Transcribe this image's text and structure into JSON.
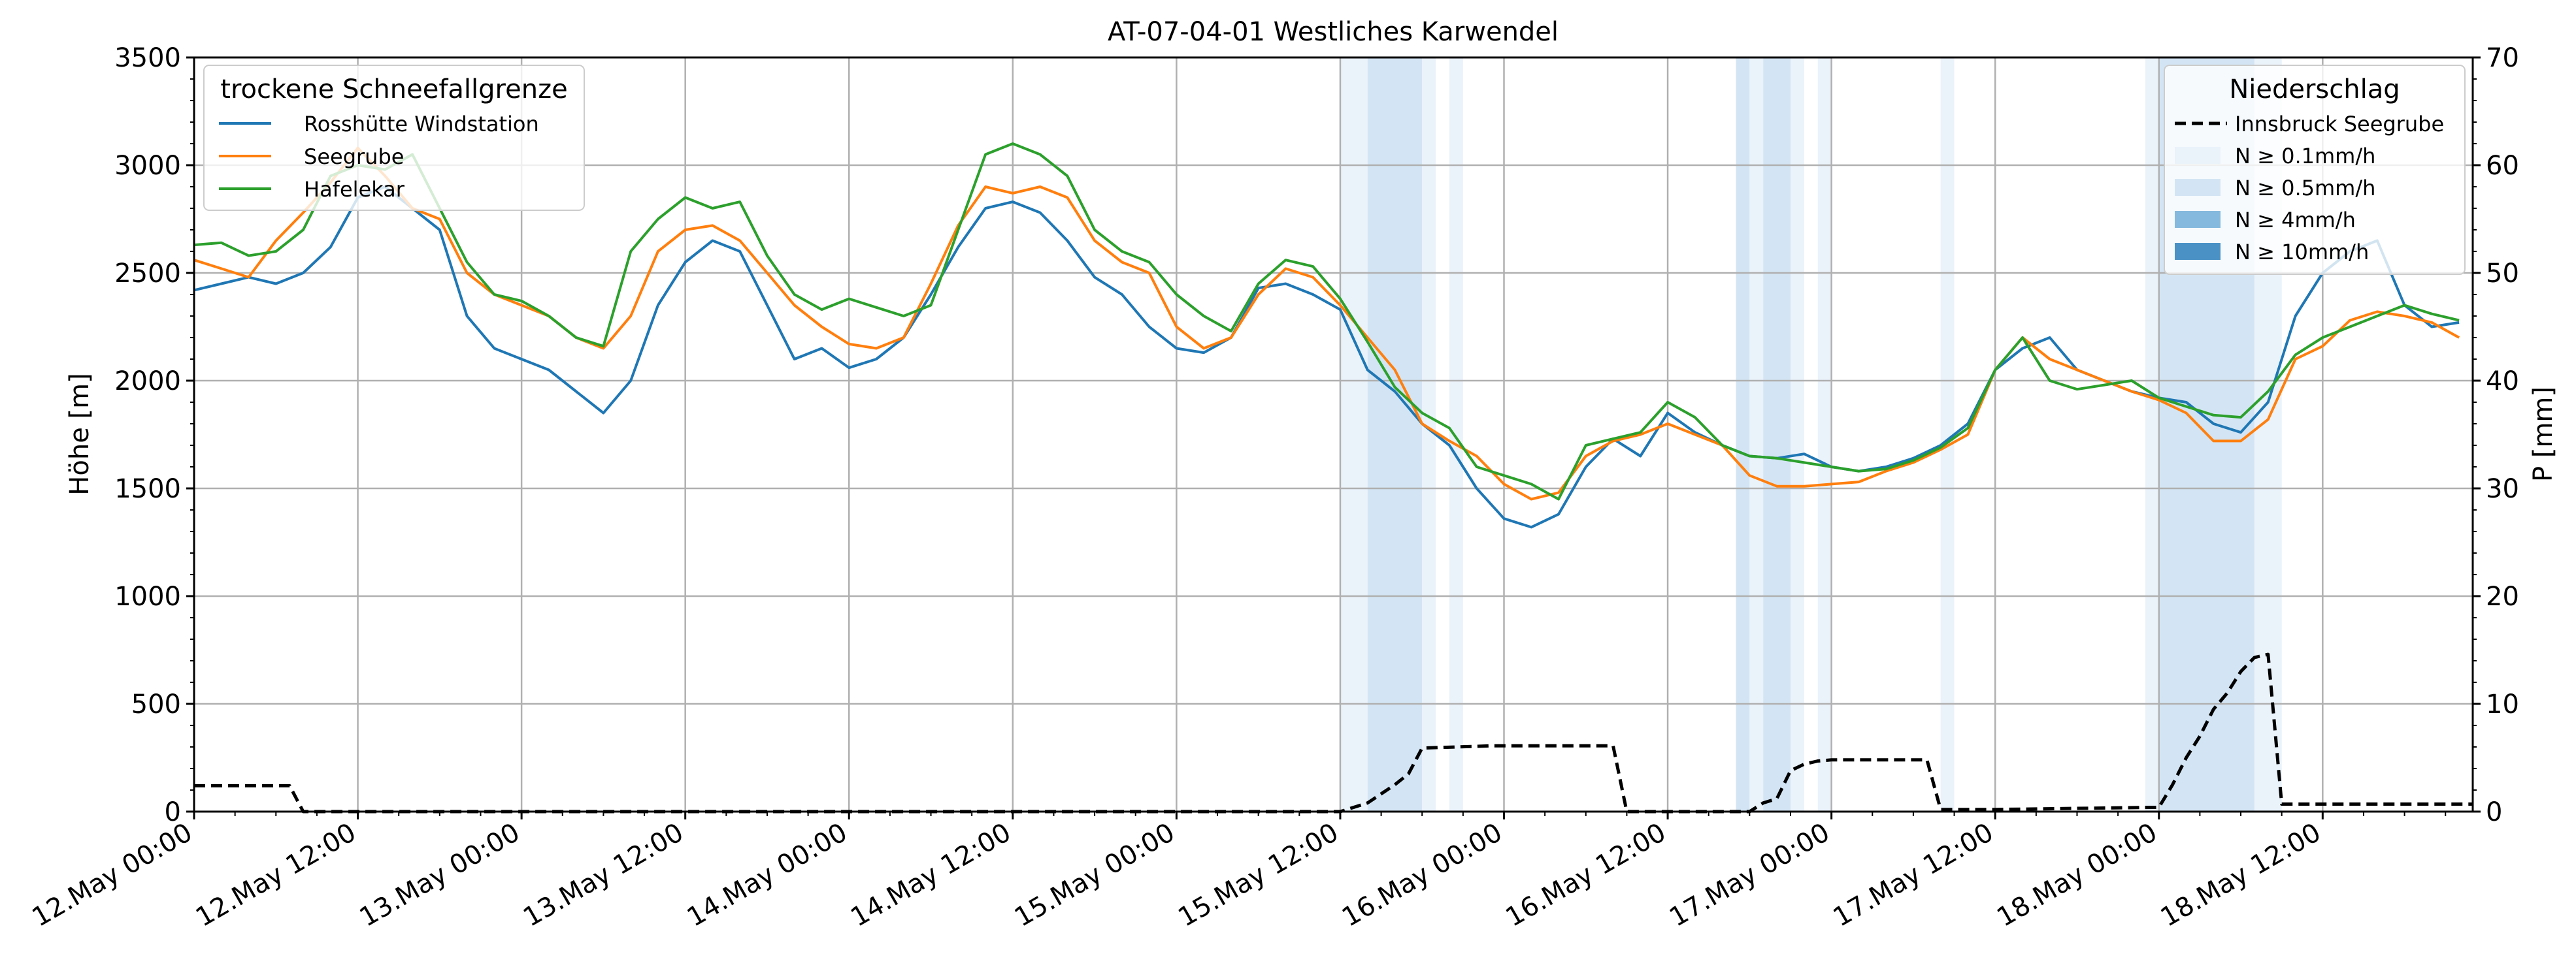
{
  "chart_data": {
    "type": "line",
    "title": "AT-07-04-01 Westliches Karwendel",
    "ylabel_left": "Höhe [m]",
    "ylabel_right": "P [mm]",
    "ylim_left": [
      0,
      3500
    ],
    "ylim_right": [
      0,
      70
    ],
    "yticks_left": [
      "0",
      "500",
      "1000",
      "1500",
      "2000",
      "2500",
      "3000",
      "3500"
    ],
    "yticks_right": [
      "0",
      "10",
      "20",
      "30",
      "40",
      "50",
      "60",
      "70"
    ],
    "x_unit": "hours since 12.May 00:00",
    "xlim": [
      0,
      167
    ],
    "xticks": [
      {
        "x": 0,
        "label": "12.May 00:00"
      },
      {
        "x": 12,
        "label": "12.May 12:00"
      },
      {
        "x": 24,
        "label": "13.May 00:00"
      },
      {
        "x": 36,
        "label": "13.May 12:00"
      },
      {
        "x": 48,
        "label": "14.May 00:00"
      },
      {
        "x": 60,
        "label": "14.May 12:00"
      },
      {
        "x": 72,
        "label": "15.May 00:00"
      },
      {
        "x": 84,
        "label": "15.May 12:00"
      },
      {
        "x": 96,
        "label": "16.May 00:00"
      },
      {
        "x": 108,
        "label": "16.May 12:00"
      },
      {
        "x": 120,
        "label": "17.May 00:00"
      },
      {
        "x": 132,
        "label": "17.May 12:00"
      },
      {
        "x": 144,
        "label": "18.May 00:00"
      },
      {
        "x": 156,
        "label": "18.May 12:00"
      }
    ],
    "grid": true,
    "legend_left": {
      "title": "trockene Schneefallgrenze",
      "placement": "top-left",
      "entries": [
        "Rosshütte Windstation",
        "Seegrube",
        "Hafelekar"
      ]
    },
    "legend_right": {
      "title": "Niederschlag",
      "placement": "top-right",
      "entries": [
        "Innsbruck Seegrube",
        "N ≥ 0.1mm/h",
        "N ≥ 0.5mm/h",
        "N ≥ 4mm/h",
        "N ≥ 10mm/h"
      ]
    },
    "series": [
      {
        "name": "Rosshütte Windstation",
        "color": "#1f77b4",
        "x": [
          0,
          2,
          4,
          6,
          8,
          10,
          12,
          14,
          16,
          18,
          20,
          22,
          24,
          26,
          28,
          30,
          32,
          34,
          36,
          38,
          40,
          42,
          44,
          46,
          48,
          50,
          52,
          54,
          56,
          58,
          60,
          62,
          64,
          66,
          68,
          70,
          72,
          74,
          76,
          78,
          80,
          82,
          84,
          86,
          88,
          90,
          92,
          94,
          96,
          98,
          100,
          102,
          104,
          106,
          108,
          110,
          112,
          114,
          116,
          118,
          120,
          122,
          124,
          126,
          128,
          130,
          132,
          134,
          136,
          138,
          140,
          142,
          144,
          146,
          148,
          150,
          152,
          154,
          156,
          158,
          160,
          162,
          164,
          166
        ],
        "y": [
          2420,
          2450,
          2480,
          2450,
          2500,
          2620,
          2850,
          2900,
          2800,
          2700,
          2300,
          2150,
          2100,
          2050,
          1950,
          1850,
          2000,
          2350,
          2550,
          2650,
          2600,
          2350,
          2100,
          2150,
          2060,
          2100,
          2200,
          2400,
          2620,
          2800,
          2830,
          2780,
          2650,
          2480,
          2400,
          2250,
          2150,
          2130,
          2200,
          2430,
          2450,
          2400,
          2330,
          2050,
          1950,
          1800,
          1700,
          1500,
          1360,
          1320,
          1380,
          1600,
          1730,
          1650,
          1850,
          1760,
          1700,
          1650,
          1640,
          1660,
          1600,
          1580,
          1600,
          1640,
          1700,
          1800,
          2050,
          2150,
          2200,
          2050,
          2000,
          1950,
          1920,
          1900,
          1800,
          1760,
          1900,
          2300,
          2500,
          2600,
          2650,
          2350,
          2250,
          2270
        ]
      },
      {
        "name": "Seegrube",
        "color": "#ff7f0e",
        "x": [
          0,
          2,
          4,
          6,
          8,
          10,
          12,
          14,
          16,
          18,
          20,
          22,
          24,
          26,
          28,
          30,
          32,
          34,
          36,
          38,
          40,
          42,
          44,
          46,
          48,
          50,
          52,
          54,
          56,
          58,
          60,
          62,
          64,
          66,
          68,
          70,
          72,
          74,
          76,
          78,
          80,
          82,
          84,
          86,
          88,
          90,
          92,
          94,
          96,
          98,
          100,
          102,
          104,
          106,
          108,
          110,
          112,
          114,
          116,
          118,
          120,
          122,
          124,
          126,
          128,
          130,
          132,
          134,
          136,
          138,
          140,
          142,
          144,
          146,
          148,
          150,
          152,
          154,
          156,
          158,
          160,
          162,
          164,
          166
        ],
        "y": [
          2560,
          2520,
          2480,
          2650,
          2780,
          2920,
          3080,
          2950,
          2800,
          2750,
          2500,
          2400,
          2350,
          2300,
          2200,
          2150,
          2300,
          2600,
          2700,
          2720,
          2650,
          2500,
          2350,
          2250,
          2170,
          2150,
          2200,
          2450,
          2720,
          2900,
          2870,
          2900,
          2850,
          2650,
          2550,
          2500,
          2250,
          2150,
          2200,
          2400,
          2520,
          2480,
          2350,
          2200,
          2050,
          1800,
          1720,
          1650,
          1520,
          1450,
          1480,
          1650,
          1720,
          1750,
          1800,
          1750,
          1700,
          1560,
          1510,
          1510,
          1520,
          1530,
          1580,
          1620,
          1680,
          1750,
          2050,
          2200,
          2100,
          2050,
          2000,
          1950,
          1910,
          1850,
          1720,
          1720,
          1820,
          2100,
          2160,
          2280,
          2320,
          2300,
          2270,
          2200
        ]
      },
      {
        "name": "Hafelekar",
        "color": "#2ca02c",
        "x": [
          0,
          2,
          4,
          6,
          8,
          10,
          12,
          14,
          16,
          18,
          20,
          22,
          24,
          26,
          28,
          30,
          32,
          34,
          36,
          38,
          40,
          42,
          44,
          46,
          48,
          50,
          52,
          54,
          56,
          58,
          60,
          62,
          64,
          66,
          68,
          70,
          72,
          74,
          76,
          78,
          80,
          82,
          84,
          86,
          88,
          90,
          92,
          94,
          96,
          98,
          100,
          102,
          104,
          106,
          108,
          110,
          112,
          114,
          116,
          118,
          120,
          122,
          124,
          126,
          128,
          130,
          132,
          134,
          136,
          138,
          140,
          142,
          144,
          146,
          148,
          150,
          152,
          154,
          156,
          158,
          160,
          162,
          164,
          166
        ],
        "y": [
          2630,
          2640,
          2580,
          2600,
          2700,
          2950,
          3000,
          2980,
          3050,
          2800,
          2550,
          2400,
          2370,
          2300,
          2200,
          2160,
          2600,
          2750,
          2850,
          2800,
          2830,
          2580,
          2400,
          2330,
          2380,
          2340,
          2300,
          2350,
          2700,
          3050,
          3100,
          3050,
          2950,
          2700,
          2600,
          2550,
          2400,
          2300,
          2230,
          2450,
          2560,
          2530,
          2380,
          2180,
          1970,
          1850,
          1780,
          1600,
          1560,
          1520,
          1450,
          1700,
          1730,
          1760,
          1900,
          1830,
          1700,
          1650,
          1640,
          1620,
          1600,
          1580,
          1590,
          1630,
          1690,
          1780,
          2050,
          2200,
          2000,
          1960,
          1980,
          2000,
          1920,
          1880,
          1840,
          1830,
          1950,
          2120,
          2200,
          2250,
          2300,
          2350,
          2310,
          2280
        ]
      },
      {
        "name": "Innsbruck Seegrube",
        "color": "#000000",
        "dashed": true,
        "axis": "right",
        "x": [
          0,
          7,
          8,
          84,
          86,
          88,
          89,
          90,
          95,
          96,
          100,
          103,
          104,
          105,
          107,
          108,
          114,
          115,
          116,
          117,
          118,
          119,
          120,
          126,
          127,
          128,
          132,
          144,
          145,
          146,
          147,
          148,
          149,
          150,
          151,
          152,
          153,
          154,
          165,
          167
        ],
        "y": [
          2.4,
          2.4,
          0,
          0,
          0.8,
          2.5,
          3.5,
          5.9,
          6.1,
          6.1,
          6.1,
          6.1,
          6.1,
          0,
          0,
          0,
          0,
          0.8,
          1.2,
          3.8,
          4.4,
          4.7,
          4.8,
          4.8,
          4.8,
          0.2,
          0.2,
          0.4,
          2.5,
          5.0,
          7.0,
          9.5,
          11.0,
          13.0,
          14.3,
          14.6,
          0.7,
          0.7,
          0.7,
          0.7
        ]
      }
    ],
    "precip_bands": [
      {
        "start": 84.0,
        "end": 86.0,
        "level": "N ≥ 0.1mm/h"
      },
      {
        "start": 86.0,
        "end": 90.0,
        "level": "N ≥ 0.5mm/h"
      },
      {
        "start": 90.0,
        "end": 91.0,
        "level": "N ≥ 0.1mm/h"
      },
      {
        "start": 92.0,
        "end": 93.0,
        "level": "N ≥ 0.1mm/h"
      },
      {
        "start": 113.0,
        "end": 114.0,
        "level": "N ≥ 0.5mm/h"
      },
      {
        "start": 114.0,
        "end": 115.0,
        "level": "N ≥ 0.1mm/h"
      },
      {
        "start": 115.0,
        "end": 117.0,
        "level": "N ≥ 0.5mm/h"
      },
      {
        "start": 117.0,
        "end": 118.0,
        "level": "N ≥ 0.1mm/h"
      },
      {
        "start": 119.0,
        "end": 120.0,
        "level": "N ≥ 0.1mm/h"
      },
      {
        "start": 128.0,
        "end": 129.0,
        "level": "N ≥ 0.1mm/h"
      },
      {
        "start": 143.0,
        "end": 144.0,
        "level": "N ≥ 0.1mm/h"
      },
      {
        "start": 144.0,
        "end": 151.0,
        "level": "N ≥ 0.5mm/h"
      },
      {
        "start": 151.0,
        "end": 153.0,
        "level": "N ≥ 0.1mm/h"
      }
    ],
    "band_colors": {
      "N ≥ 0.1mm/h": "#eaf2fa",
      "N ≥ 0.5mm/h": "#d3e5f4",
      "N ≥ 4mm/h": "#85b9dd",
      "N ≥ 10mm/h": "#4a91c6"
    }
  }
}
